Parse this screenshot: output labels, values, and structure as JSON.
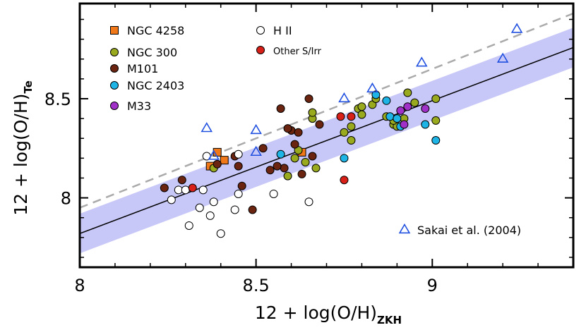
{
  "chart_data": {
    "type": "scatter",
    "xlim": [
      8.0,
      9.4
    ],
    "ylim": [
      7.65,
      8.98
    ],
    "xticks": [
      8,
      8.5,
      9
    ],
    "xtick_labels": [
      "8",
      "8.5",
      "9"
    ],
    "yticks": [
      8,
      8.5
    ],
    "ytick_labels": [
      "8",
      "8.5"
    ],
    "xlabel": {
      "main": "12 + log(O/H)",
      "sub": "ZKH"
    },
    "ylabel": {
      "main": "12 + log(O/H)",
      "sub": "Te"
    },
    "grid": false,
    "legend_position": "top-left",
    "fit_line": {
      "intercept": 7.82,
      "slope": 0.67,
      "color": "#000000"
    },
    "one_to_one_line": {
      "intercept": 7.95,
      "slope": 0.7,
      "color": "#aaaaaa",
      "style": "dashed"
    },
    "band": {
      "half_width": 0.1,
      "color": "#c8c8f8"
    },
    "series": [
      {
        "name": "NGC 4258",
        "marker": "square",
        "color": "#f07818",
        "points": [
          [
            8.37,
            8.16
          ],
          [
            8.39,
            8.23
          ],
          [
            8.41,
            8.19
          ],
          [
            8.63,
            8.23
          ]
        ]
      },
      {
        "name": "NGC 300",
        "marker": "circle",
        "color": "#9aaa1e",
        "points": [
          [
            8.38,
            8.15
          ],
          [
            8.59,
            8.11
          ],
          [
            8.61,
            8.2
          ],
          [
            8.64,
            8.18
          ],
          [
            8.66,
            8.4
          ],
          [
            8.67,
            8.15
          ],
          [
            8.75,
            8.33
          ],
          [
            8.77,
            8.36
          ],
          [
            8.77,
            8.29
          ],
          [
            8.79,
            8.45
          ],
          [
            8.8,
            8.46
          ],
          [
            8.8,
            8.42
          ],
          [
            8.83,
            8.47
          ],
          [
            8.84,
            8.5
          ],
          [
            8.87,
            8.41
          ],
          [
            8.89,
            8.37
          ],
          [
            8.9,
            8.36
          ],
          [
            8.92,
            8.4
          ],
          [
            8.93,
            8.53
          ],
          [
            8.95,
            8.48
          ],
          [
            9.01,
            8.5
          ],
          [
            9.01,
            8.39
          ],
          [
            8.66,
            8.43
          ],
          [
            8.62,
            8.24
          ],
          [
            8.89,
            8.39
          ]
        ]
      },
      {
        "name": "M101",
        "marker": "circle",
        "color": "#6a2410",
        "points": [
          [
            8.24,
            8.05
          ],
          [
            8.29,
            8.09
          ],
          [
            8.44,
            8.21
          ],
          [
            8.45,
            8.16
          ],
          [
            8.46,
            8.06
          ],
          [
            8.49,
            7.94
          ],
          [
            8.52,
            8.25
          ],
          [
            8.54,
            8.14
          ],
          [
            8.57,
            8.45
          ],
          [
            8.58,
            8.15
          ],
          [
            8.6,
            8.34
          ],
          [
            8.61,
            8.27
          ],
          [
            8.62,
            8.33
          ],
          [
            8.63,
            8.12
          ],
          [
            8.65,
            8.5
          ],
          [
            8.66,
            8.21
          ],
          [
            8.68,
            8.37
          ],
          [
            8.56,
            8.16
          ],
          [
            8.59,
            8.35
          ],
          [
            8.39,
            8.17
          ]
        ]
      },
      {
        "name": "NGC 2403",
        "marker": "circle",
        "color": "#1eb4e6",
        "points": [
          [
            8.57,
            8.22
          ],
          [
            8.75,
            8.2
          ],
          [
            8.84,
            8.52
          ],
          [
            8.87,
            8.49
          ],
          [
            8.88,
            8.41
          ],
          [
            8.91,
            8.36
          ],
          [
            8.98,
            8.37
          ],
          [
            9.01,
            8.29
          ],
          [
            8.9,
            8.4
          ]
        ]
      },
      {
        "name": "M33",
        "marker": "circle",
        "color": "#a030c8",
        "points": [
          [
            8.91,
            8.44
          ],
          [
            8.93,
            8.46
          ],
          [
            8.98,
            8.45
          ],
          [
            8.92,
            8.37
          ]
        ]
      },
      {
        "name": "H II",
        "marker": "circle",
        "color": "#ffffff",
        "points": [
          [
            8.26,
            7.99
          ],
          [
            8.28,
            8.04
          ],
          [
            8.3,
            8.04
          ],
          [
            8.31,
            7.86
          ],
          [
            8.34,
            7.95
          ],
          [
            8.35,
            8.04
          ],
          [
            8.36,
            8.21
          ],
          [
            8.37,
            7.91
          ],
          [
            8.38,
            7.98
          ],
          [
            8.4,
            7.82
          ],
          [
            8.44,
            7.94
          ],
          [
            8.45,
            8.02
          ],
          [
            8.55,
            8.02
          ],
          [
            8.65,
            7.98
          ],
          [
            8.45,
            8.22
          ]
        ]
      },
      {
        "name": "Other S/Irr",
        "marker": "circle",
        "color": "#d82018",
        "points": [
          [
            8.32,
            8.05
          ],
          [
            8.74,
            8.41
          ],
          [
            8.77,
            8.41
          ],
          [
            8.75,
            8.09
          ]
        ]
      },
      {
        "name": "Sakai et al. (2004)",
        "marker": "triangle",
        "color": "#2050e0",
        "points": [
          [
            8.36,
            8.35
          ],
          [
            8.38,
            8.21
          ],
          [
            8.5,
            8.34
          ],
          [
            8.5,
            8.23
          ],
          [
            8.75,
            8.5
          ],
          [
            8.83,
            8.55
          ],
          [
            8.97,
            8.68
          ],
          [
            9.2,
            8.7
          ],
          [
            9.24,
            8.85
          ]
        ]
      }
    ]
  }
}
